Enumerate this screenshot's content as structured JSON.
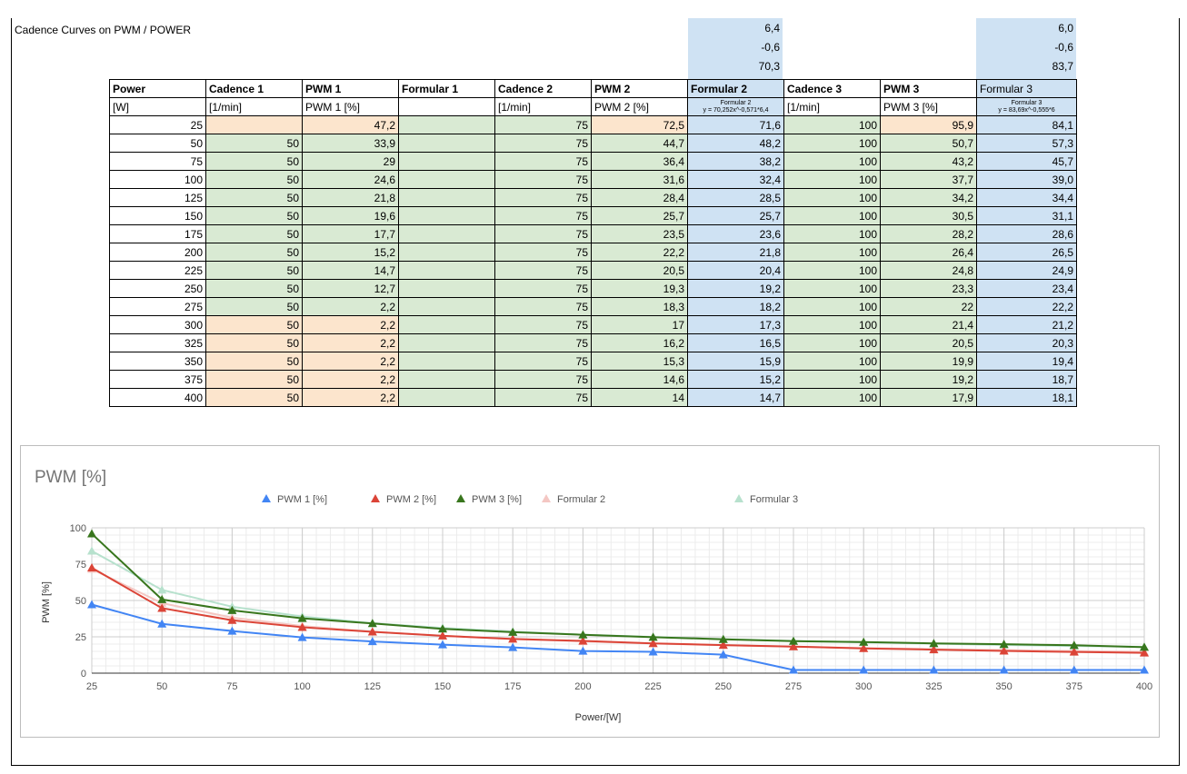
{
  "sheet": {
    "title": "Cadence Curves on PWM / POWER",
    "params_f2": [
      "6,4",
      "-0,6",
      "70,3"
    ],
    "params_f3": [
      "6,0",
      "-0,6",
      "83,7"
    ]
  },
  "table": {
    "headers": [
      "Power",
      "Cadence 1",
      "PWM 1",
      "Formular 1",
      "Cadence 2",
      "PWM 2",
      "Formular 2",
      "Cadence 3",
      "PWM 3",
      "Formular 3"
    ],
    "units": [
      "[W]",
      "[1/min]",
      "PWM 1 [%]",
      "",
      "[1/min]",
      "PWM 2 [%]",
      "",
      "[1/min]",
      "PWM 3 [%]",
      ""
    ],
    "formula2_label": "Formular 2",
    "formula2_expr": "y = 70,252x^-0,571*6,4",
    "formula3_label": "Formular 3",
    "formula3_expr": "y = 83,69x^-0,555*6",
    "rows": [
      [
        "25",
        "",
        "47,2",
        "",
        "75",
        "72,5",
        "71,6",
        "100",
        "95,9",
        "84,1"
      ],
      [
        "50",
        "50",
        "33,9",
        "",
        "75",
        "44,7",
        "48,2",
        "100",
        "50,7",
        "57,3"
      ],
      [
        "75",
        "50",
        "29",
        "",
        "75",
        "36,4",
        "38,2",
        "100",
        "43,2",
        "45,7"
      ],
      [
        "100",
        "50",
        "24,6",
        "",
        "75",
        "31,6",
        "32,4",
        "100",
        "37,7",
        "39,0"
      ],
      [
        "125",
        "50",
        "21,8",
        "",
        "75",
        "28,4",
        "28,5",
        "100",
        "34,2",
        "34,4"
      ],
      [
        "150",
        "50",
        "19,6",
        "",
        "75",
        "25,7",
        "25,7",
        "100",
        "30,5",
        "31,1"
      ],
      [
        "175",
        "50",
        "17,7",
        "",
        "75",
        "23,5",
        "23,6",
        "100",
        "28,2",
        "28,6"
      ],
      [
        "200",
        "50",
        "15,2",
        "",
        "75",
        "22,2",
        "21,8",
        "100",
        "26,4",
        "26,5"
      ],
      [
        "225",
        "50",
        "14,7",
        "",
        "75",
        "20,5",
        "20,4",
        "100",
        "24,8",
        "24,9"
      ],
      [
        "250",
        "50",
        "12,7",
        "",
        "75",
        "19,3",
        "19,2",
        "100",
        "23,3",
        "23,4"
      ],
      [
        "275",
        "50",
        "2,2",
        "",
        "75",
        "18,3",
        "18,2",
        "100",
        "22",
        "22,2"
      ],
      [
        "300",
        "50",
        "2,2",
        "",
        "75",
        "17",
        "17,3",
        "100",
        "21,4",
        "21,2"
      ],
      [
        "325",
        "50",
        "2,2",
        "",
        "75",
        "16,2",
        "16,5",
        "100",
        "20,5",
        "20,3"
      ],
      [
        "350",
        "50",
        "2,2",
        "",
        "75",
        "15,3",
        "15,9",
        "100",
        "19,9",
        "19,4"
      ],
      [
        "375",
        "50",
        "2,2",
        "",
        "75",
        "14,6",
        "15,2",
        "100",
        "19,2",
        "18,7"
      ],
      [
        "400",
        "50",
        "2,2",
        "",
        "75",
        "14",
        "14,7",
        "100",
        "17,9",
        "18,1"
      ]
    ],
    "peach_cells": [
      [
        0,
        1
      ],
      [
        0,
        2
      ],
      [
        11,
        1
      ],
      [
        11,
        2
      ],
      [
        12,
        1
      ],
      [
        12,
        2
      ],
      [
        13,
        1
      ],
      [
        13,
        2
      ],
      [
        14,
        1
      ],
      [
        14,
        2
      ],
      [
        15,
        1
      ],
      [
        15,
        2
      ],
      [
        0,
        5
      ],
      [
        0,
        8
      ]
    ],
    "colors": {
      "peach": "#fce5cd",
      "green": "#d9ead3",
      "blue": "#cfe2f3"
    }
  },
  "chart_data": {
    "type": "line",
    "title": "PWM [%]",
    "xlabel": "Power/[W]",
    "ylabel": "PWM [%]",
    "x": [
      25,
      50,
      75,
      100,
      125,
      150,
      175,
      200,
      225,
      250,
      275,
      300,
      325,
      350,
      375,
      400
    ],
    "xlim": [
      25,
      400
    ],
    "ylim": [
      0,
      100
    ],
    "x_ticks": [
      25,
      50,
      75,
      100,
      125,
      150,
      175,
      200,
      225,
      250,
      275,
      300,
      325,
      350,
      375,
      400
    ],
    "y_ticks": [
      0,
      25,
      50,
      75,
      100
    ],
    "grid": true,
    "legend_position": "top",
    "series": [
      {
        "name": "PWM 1 [%]",
        "color": "#4285f4",
        "marker": "triangle",
        "values": [
          47.2,
          33.9,
          29,
          24.6,
          21.8,
          19.6,
          17.7,
          15.2,
          14.7,
          12.7,
          2.2,
          2.2,
          2.2,
          2.2,
          2.2,
          2.2
        ]
      },
      {
        "name": "PWM 2 [%]",
        "color": "#db4437",
        "marker": "triangle",
        "values": [
          72.5,
          44.7,
          36.4,
          31.6,
          28.4,
          25.7,
          23.5,
          22.2,
          20.5,
          19.3,
          18.3,
          17,
          16.2,
          15.3,
          14.6,
          14
        ]
      },
      {
        "name": "PWM 3 [%]",
        "color": "#38761d",
        "marker": "triangle",
        "values": [
          95.9,
          50.7,
          43.2,
          37.7,
          34.2,
          30.5,
          28.2,
          26.4,
          24.8,
          23.3,
          22,
          21.4,
          20.5,
          19.9,
          19.2,
          17.9
        ]
      },
      {
        "name": "Formular 2",
        "color": "#f4c7c3",
        "marker": "triangle",
        "values": [
          71.6,
          48.2,
          38.2,
          32.4,
          28.5,
          25.7,
          23.6,
          21.8,
          20.4,
          19.2,
          18.2,
          17.3,
          16.5,
          15.9,
          15.2,
          14.7
        ]
      },
      {
        "name": "Formular 3",
        "color": "#b7e1cd",
        "marker": "triangle",
        "values": [
          84.1,
          57.3,
          45.7,
          39.0,
          34.4,
          31.1,
          28.6,
          26.5,
          24.9,
          23.4,
          22.2,
          21.2,
          20.3,
          19.4,
          18.7,
          18.1
        ]
      }
    ]
  }
}
